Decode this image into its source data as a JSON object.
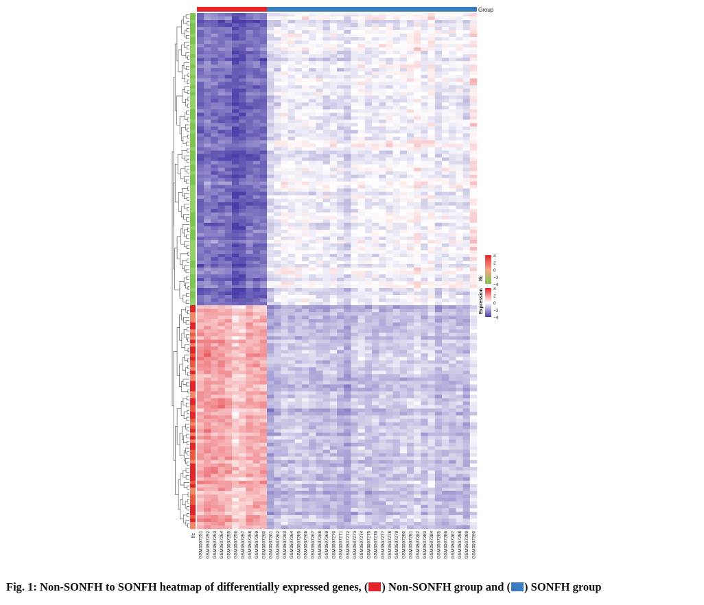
{
  "chart_data": {
    "type": "heatmap",
    "title": "",
    "top_annotation": {
      "label": "Group",
      "groups": [
        {
          "name": "Non-SONFH",
          "color": "#e3242b",
          "count": 10
        },
        {
          "name": "SONFH",
          "color": "#3a7dbf",
          "count": 30
        }
      ]
    },
    "left_annotation": {
      "label": "lfc",
      "blocks": [
        {
          "sign": "down",
          "color": "#7ec451",
          "fraction": 0.57
        },
        {
          "sign": "up",
          "color": "#e3242b",
          "fraction": 0.43
        }
      ]
    },
    "columns": [
      "GSM3507251",
      "GSM3507252",
      "GSM3507253",
      "GSM3507254",
      "GSM3507255",
      "GSM3507256",
      "GSM3507257",
      "GSM3507258",
      "GSM3507259",
      "GSM3507260",
      "GSM3507261",
      "GSM3507262",
      "GSM3507263",
      "GSM3507264",
      "GSM3507265",
      "GSM3507266",
      "GSM3507267",
      "GSM3507268",
      "GSM3507269",
      "GSM3507270",
      "GSM3507271",
      "GSM3507272",
      "GSM3507273",
      "GSM3507274",
      "GSM3507275",
      "GSM3507276",
      "GSM3507277",
      "GSM3507278",
      "GSM3507279",
      "GSM3507280",
      "GSM3507281",
      "GSM3507282",
      "GSM3507283",
      "GSM3507284",
      "GSM3507285",
      "GSM3507286",
      "GSM3507287",
      "GSM3507288",
      "GSM3507289",
      "GSM3507290"
    ],
    "color_scale": {
      "min": -4,
      "max": 4,
      "low": "#4a3ea8",
      "mid": "#ffffff",
      "high": "#e3242b"
    },
    "block_means": {
      "down_rows": {
        "non_sonfh": -3.0,
        "sonfh": -0.3
      },
      "up_rows": {
        "non_sonfh": 1.5,
        "sonfh": -1.2
      }
    },
    "legends": [
      {
        "title": "lfc",
        "ticks": [
          "4",
          "2",
          "0",
          "−2",
          "−4"
        ],
        "colors": [
          "#e3242b",
          "#f6a58a",
          "#7ec451"
        ]
      },
      {
        "title": "Expression",
        "ticks": [
          "4",
          "2",
          "0",
          "−2",
          "−4"
        ],
        "colors": [
          "#e3242b",
          "#ffffff",
          "#4a3ea8"
        ]
      }
    ]
  },
  "caption": {
    "fig_label": "Fig. 1:",
    "text_1": " Non-SONFH to SONFH heatmap of differentially expressed genes, (",
    "text_2": ") Non-SONFH group and (",
    "text_3": ") SONFH group"
  }
}
